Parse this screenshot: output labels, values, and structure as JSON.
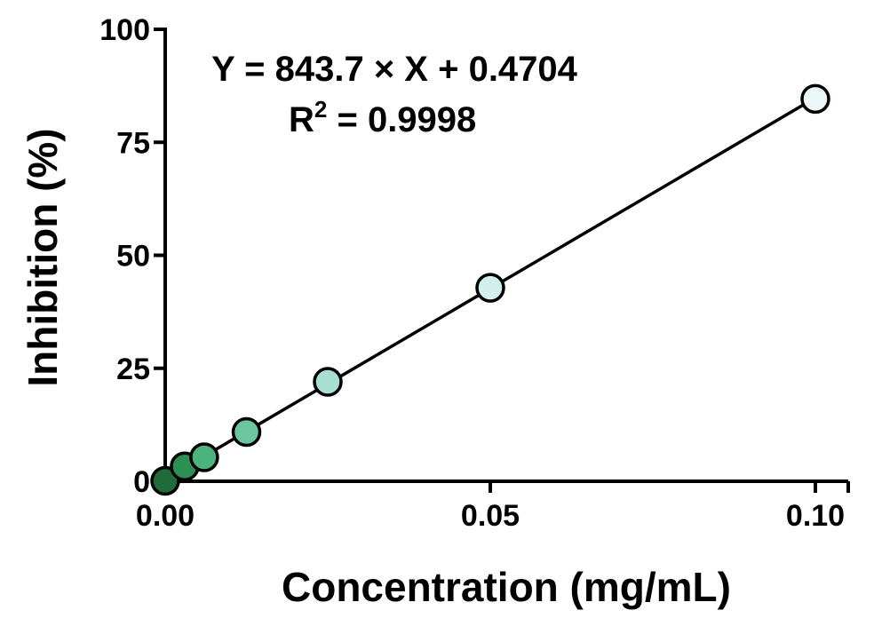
{
  "chart_data": {
    "type": "scatter",
    "xlabel": "Concentration (mg/mL)",
    "ylabel": "Inhibition (%)",
    "xlim": [
      0,
      0.1
    ],
    "ylim": [
      0,
      100
    ],
    "x_ticks": [
      "0.00",
      "0.05",
      "0.10"
    ],
    "x_tick_values": [
      0,
      0.05,
      0.1
    ],
    "y_ticks": [
      "0",
      "25",
      "50",
      "75",
      "100"
    ],
    "y_tick_values": [
      0,
      25,
      50,
      75,
      100
    ],
    "grid": false,
    "equation": "Y = 843.7 × X + 0.4704",
    "r2_label": "R",
    "r2_exponent": "2",
    "r2_value": " = 0.9998",
    "fit": {
      "slope": 843.7,
      "intercept": 0.4704
    },
    "series": [
      {
        "points": [
          {
            "x": 0.0,
            "y": 0.1,
            "color": "#1f6b3a"
          },
          {
            "x": 0.003,
            "y": 3.3,
            "color": "#2e8f55"
          },
          {
            "x": 0.006,
            "y": 5.3,
            "color": "#4db37c"
          },
          {
            "x": 0.0125,
            "y": 10.9,
            "color": "#6cc4a0"
          },
          {
            "x": 0.025,
            "y": 22.0,
            "color": "#a8dfd3"
          },
          {
            "x": 0.05,
            "y": 42.8,
            "color": "#d2efec"
          },
          {
            "x": 0.1,
            "y": 84.6,
            "color": "#eaf6f8"
          }
        ]
      }
    ],
    "line_color": "#000000"
  }
}
